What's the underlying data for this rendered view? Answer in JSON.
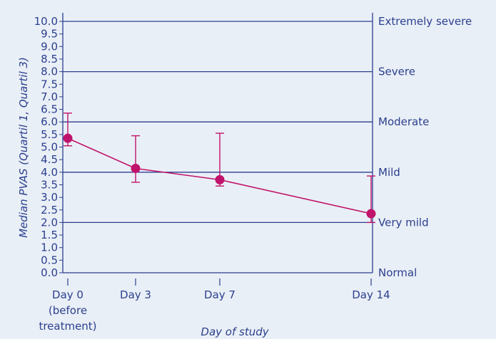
{
  "chart_data": {
    "type": "line",
    "title": "",
    "xlabel": "Day of study",
    "ylabel": "Median PVAS (Quartil 1, Quartil 3)",
    "ylim": [
      0,
      10
    ],
    "yticks": [
      "0.0",
      "0.5",
      "1.0",
      "1.5",
      "2.0",
      "2.5",
      "3.0",
      "3.5",
      "4.0",
      "4.5",
      "5.0",
      "5.5",
      "6.0",
      "6.5",
      "7.0",
      "7.5",
      "8.0",
      "8.5",
      "9.0",
      "9.5",
      "10.0"
    ],
    "x": [
      0,
      3,
      7,
      14
    ],
    "x_tick_labels": [
      [
        "Day 0",
        "(before",
        "treatment)"
      ],
      [
        "Day 3"
      ],
      [
        "Day 7"
      ],
      [
        "Day 14"
      ]
    ],
    "series": [
      {
        "median": [
          5.35,
          4.15,
          3.7,
          2.35
        ],
        "q1": [
          5.05,
          3.6,
          3.45,
          2.0
        ],
        "q3": [
          6.35,
          5.45,
          5.55,
          3.85
        ]
      }
    ],
    "severity_levels": [
      {
        "label": "Normal",
        "value": 0
      },
      {
        "label": "Very mild",
        "value": 2
      },
      {
        "label": "Mild",
        "value": 4
      },
      {
        "label": "Moderate",
        "value": 6
      },
      {
        "label": "Severe",
        "value": 8
      },
      {
        "label": "Extremely severe",
        "value": 10
      }
    ],
    "grid": true,
    "colors": {
      "axis": "#2b3f8f",
      "series": "#c0136b",
      "background": "#e9eff6"
    }
  }
}
